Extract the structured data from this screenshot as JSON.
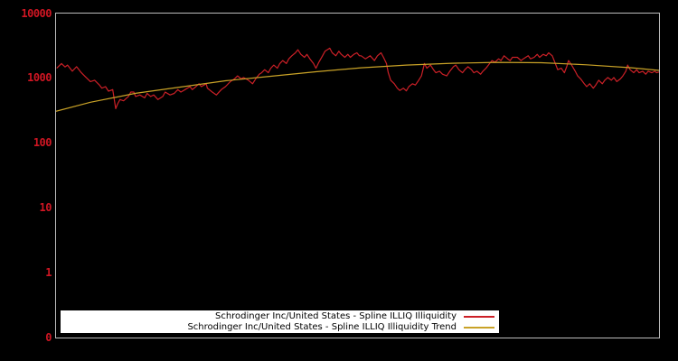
{
  "colors": {
    "background": "#000000",
    "plot_border": "#bdbdbd",
    "axis_label_color": "#d01623",
    "legend_background": "#ffffff",
    "legend_text": "#000000",
    "series_red": "#cc2027",
    "series_gold": "#c9a227"
  },
  "chart_data": {
    "type": "line",
    "title": "",
    "xlabel": "",
    "ylabel": "",
    "x_axis": {
      "tick_labels": [],
      "note": "no x-axis labels visible"
    },
    "y_axis": {
      "scale": "log",
      "ticks": [
        {
          "label": "10000",
          "decade": 4
        },
        {
          "label": "1000",
          "decade": 3
        },
        {
          "label": "100",
          "decade": 2
        },
        {
          "label": "10",
          "decade": 1
        },
        {
          "label": "1",
          "decade": 0
        },
        {
          "label": "0",
          "decade": -1
        }
      ],
      "range_top": 10000,
      "range_bottom_label": "0",
      "grid": false
    },
    "legend": {
      "position": "bottom-center",
      "background": "#ffffff"
    },
    "series": [
      {
        "name": "Schrodinger Inc/United States - Spline ILLIQ Illiquidity",
        "color": "#cc2027",
        "x_unit": "percent-of-width",
        "points": [
          [
            0.1,
            1430
          ],
          [
            0.9,
            1690
          ],
          [
            1.5,
            1500
          ],
          [
            1.9,
            1600
          ],
          [
            2.7,
            1290
          ],
          [
            3.4,
            1510
          ],
          [
            4.2,
            1220
          ],
          [
            4.9,
            1050
          ],
          [
            5.7,
            890
          ],
          [
            6.4,
            935
          ],
          [
            7.2,
            790
          ],
          [
            7.6,
            705
          ],
          [
            8.2,
            745
          ],
          [
            8.7,
            635
          ],
          [
            9.4,
            670
          ],
          [
            9.9,
            340
          ],
          [
            10.2,
            400
          ],
          [
            10.6,
            470
          ],
          [
            11.2,
            450
          ],
          [
            12.0,
            525
          ],
          [
            12.4,
            615
          ],
          [
            12.9,
            615
          ],
          [
            13.2,
            525
          ],
          [
            13.9,
            555
          ],
          [
            14.7,
            500
          ],
          [
            15.1,
            585
          ],
          [
            15.7,
            525
          ],
          [
            16.2,
            555
          ],
          [
            16.9,
            470
          ],
          [
            17.7,
            525
          ],
          [
            18.1,
            615
          ],
          [
            18.9,
            555
          ],
          [
            19.6,
            585
          ],
          [
            20.2,
            670
          ],
          [
            20.7,
            615
          ],
          [
            21.4,
            670
          ],
          [
            22.2,
            745
          ],
          [
            22.6,
            670
          ],
          [
            23.2,
            745
          ],
          [
            23.7,
            825
          ],
          [
            24.1,
            745
          ],
          [
            24.9,
            825
          ],
          [
            25.1,
            705
          ],
          [
            25.9,
            615
          ],
          [
            26.6,
            555
          ],
          [
            27.4,
            670
          ],
          [
            28.1,
            745
          ],
          [
            28.9,
            890
          ],
          [
            29.6,
            980
          ],
          [
            30.1,
            1090
          ],
          [
            30.7,
            980
          ],
          [
            31.1,
            1030
          ],
          [
            31.9,
            935
          ],
          [
            32.6,
            825
          ],
          [
            33.1,
            980
          ],
          [
            33.7,
            1160
          ],
          [
            34.1,
            1220
          ],
          [
            34.6,
            1360
          ],
          [
            35.2,
            1220
          ],
          [
            35.6,
            1430
          ],
          [
            36.1,
            1600
          ],
          [
            36.7,
            1430
          ],
          [
            37.1,
            1690
          ],
          [
            37.6,
            1880
          ],
          [
            38.2,
            1690
          ],
          [
            38.6,
            2000
          ],
          [
            39.1,
            2230
          ],
          [
            39.7,
            2480
          ],
          [
            40.1,
            2760
          ],
          [
            40.6,
            2350
          ],
          [
            41.2,
            2110
          ],
          [
            41.6,
            2350
          ],
          [
            42.1,
            2000
          ],
          [
            42.7,
            1690
          ],
          [
            43.1,
            1430
          ],
          [
            43.6,
            1780
          ],
          [
            44.2,
            2230
          ],
          [
            44.6,
            2620
          ],
          [
            45.4,
            2920
          ],
          [
            45.8,
            2480
          ],
          [
            46.4,
            2230
          ],
          [
            46.9,
            2620
          ],
          [
            47.3,
            2350
          ],
          [
            47.9,
            2110
          ],
          [
            48.4,
            2350
          ],
          [
            48.8,
            2110
          ],
          [
            49.4,
            2350
          ],
          [
            49.9,
            2480
          ],
          [
            50.3,
            2230
          ],
          [
            50.6,
            2230
          ],
          [
            51.3,
            2000
          ],
          [
            52.1,
            2230
          ],
          [
            52.8,
            1880
          ],
          [
            53.3,
            2230
          ],
          [
            53.9,
            2480
          ],
          [
            54.3,
            2110
          ],
          [
            54.8,
            1690
          ],
          [
            55.1,
            1220
          ],
          [
            55.5,
            935
          ],
          [
            56.1,
            825
          ],
          [
            56.6,
            705
          ],
          [
            57.0,
            650
          ],
          [
            57.6,
            705
          ],
          [
            58.1,
            640
          ],
          [
            58.5,
            745
          ],
          [
            59.1,
            825
          ],
          [
            59.6,
            790
          ],
          [
            60.0,
            890
          ],
          [
            60.6,
            1090
          ],
          [
            61.1,
            1700
          ],
          [
            61.5,
            1430
          ],
          [
            62.1,
            1600
          ],
          [
            62.6,
            1360
          ],
          [
            63.0,
            1220
          ],
          [
            63.6,
            1290
          ],
          [
            64.1,
            1160
          ],
          [
            64.8,
            1090
          ],
          [
            65.3,
            1290
          ],
          [
            65.9,
            1510
          ],
          [
            66.3,
            1600
          ],
          [
            66.8,
            1360
          ],
          [
            67.4,
            1220
          ],
          [
            67.8,
            1360
          ],
          [
            68.3,
            1510
          ],
          [
            68.9,
            1360
          ],
          [
            69.3,
            1220
          ],
          [
            69.8,
            1290
          ],
          [
            70.4,
            1160
          ],
          [
            70.8,
            1290
          ],
          [
            71.3,
            1430
          ],
          [
            71.9,
            1690
          ],
          [
            72.3,
            1880
          ],
          [
            72.8,
            1780
          ],
          [
            73.4,
            2000
          ],
          [
            73.8,
            1880
          ],
          [
            74.3,
            2230
          ],
          [
            74.9,
            2000
          ],
          [
            75.3,
            1880
          ],
          [
            75.7,
            2110
          ],
          [
            76.5,
            2110
          ],
          [
            77.1,
            1880
          ],
          [
            77.5,
            2000
          ],
          [
            78.3,
            2230
          ],
          [
            78.7,
            2000
          ],
          [
            79.3,
            2110
          ],
          [
            79.8,
            2350
          ],
          [
            80.2,
            2110
          ],
          [
            80.8,
            2350
          ],
          [
            81.3,
            2230
          ],
          [
            81.7,
            2480
          ],
          [
            82.3,
            2230
          ],
          [
            82.8,
            1690
          ],
          [
            83.2,
            1360
          ],
          [
            83.8,
            1430
          ],
          [
            84.3,
            1220
          ],
          [
            84.7,
            1510
          ],
          [
            85.0,
            1880
          ],
          [
            85.5,
            1600
          ],
          [
            86.1,
            1290
          ],
          [
            86.5,
            1090
          ],
          [
            87.0,
            980
          ],
          [
            87.6,
            825
          ],
          [
            88.0,
            745
          ],
          [
            88.5,
            825
          ],
          [
            89.1,
            705
          ],
          [
            89.5,
            790
          ],
          [
            90.0,
            935
          ],
          [
            90.6,
            825
          ],
          [
            91.0,
            935
          ],
          [
            91.5,
            1030
          ],
          [
            92.1,
            935
          ],
          [
            92.5,
            1030
          ],
          [
            93.0,
            890
          ],
          [
            93.6,
            980
          ],
          [
            94.0,
            1090
          ],
          [
            94.5,
            1290
          ],
          [
            94.8,
            1600
          ],
          [
            95.2,
            1360
          ],
          [
            95.8,
            1220
          ],
          [
            96.3,
            1360
          ],
          [
            96.7,
            1220
          ],
          [
            97.3,
            1290
          ],
          [
            97.8,
            1160
          ],
          [
            98.2,
            1290
          ],
          [
            98.8,
            1220
          ],
          [
            99.3,
            1290
          ],
          [
            99.6,
            1220
          ],
          [
            100,
            1250
          ]
        ]
      },
      {
        "name": "Schrodinger Inc/United States - Spline ILLIQ Illiquidity Trend",
        "color": "#c9a227",
        "x_unit": "percent-of-width",
        "points": [
          [
            0,
            310
          ],
          [
            5.7,
            427
          ],
          [
            13.2,
            587
          ],
          [
            20.7,
            734
          ],
          [
            28.1,
            918
          ],
          [
            35.6,
            1077
          ],
          [
            43.1,
            1262
          ],
          [
            50.6,
            1456
          ],
          [
            58.1,
            1600
          ],
          [
            65.6,
            1707
          ],
          [
            73.1,
            1763
          ],
          [
            80.5,
            1740
          ],
          [
            88.0,
            1620
          ],
          [
            95.5,
            1456
          ],
          [
            100,
            1324
          ]
        ]
      }
    ]
  }
}
